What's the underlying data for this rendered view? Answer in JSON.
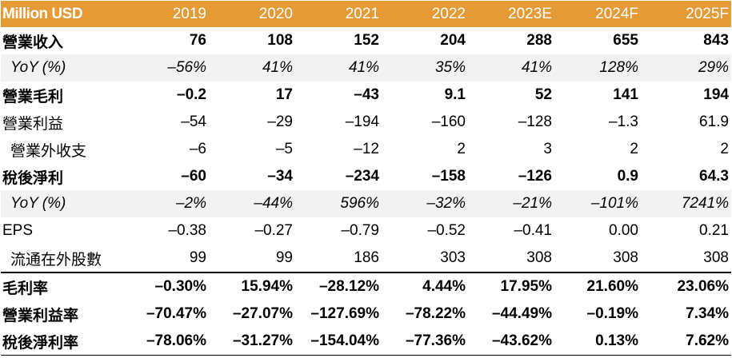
{
  "table": {
    "header": [
      "Million USD",
      "2019",
      "2020",
      "2021",
      "2022",
      "2023E",
      "2024F",
      "2025F"
    ],
    "rows": [
      {
        "label": "營業收入",
        "values": [
          "76",
          "108",
          "152",
          "204",
          "288",
          "655",
          "843"
        ]
      },
      {
        "label": "YoY (%)",
        "values": [
          "–56%",
          "41%",
          "41%",
          "35%",
          "41%",
          "128%",
          "29%"
        ]
      },
      {
        "label": "營業毛利",
        "values": [
          "–0.2",
          "17",
          "–43",
          "9.1",
          "52",
          "141",
          "194"
        ]
      },
      {
        "label": "營業利益",
        "values": [
          "–54",
          "–29",
          "–194",
          "–160",
          "–128",
          "–1.3",
          "61.9"
        ]
      },
      {
        "label": "營業外收支",
        "values": [
          "–6",
          "–5",
          "–12",
          "2",
          "3",
          "2",
          "2"
        ]
      },
      {
        "label": "稅後淨利",
        "values": [
          "–60",
          "–34",
          "–234",
          "–158",
          "–126",
          "0.9",
          "64.3"
        ]
      },
      {
        "label": "YoY (%)",
        "values": [
          "–2%",
          "–44%",
          "596%",
          "–32%",
          "–21%",
          "–101%",
          "7241%"
        ]
      },
      {
        "label": "EPS",
        "values": [
          "–0.38",
          "–0.27",
          "–0.79",
          "–0.52",
          "–0.41",
          "0.00",
          "0.21"
        ]
      },
      {
        "label": "流通在外股數",
        "values": [
          "99",
          "99",
          "186",
          "303",
          "308",
          "308",
          "308"
        ]
      },
      {
        "label": "毛利率",
        "values": [
          "–0.30%",
          "15.94%",
          "–28.12%",
          "4.44%",
          "17.95%",
          "21.60%",
          "23.06%"
        ]
      },
      {
        "label": "營業利益率",
        "values": [
          "–70.47%",
          "–27.07%",
          "–127.69%",
          "–78.22%",
          "–44.49%",
          "–0.19%",
          "7.34%"
        ]
      },
      {
        "label": "稅後淨利率",
        "values": [
          "–78.06%",
          "–31.27%",
          "–154.04%",
          "–77.36%",
          "–43.62%",
          "0.13%",
          "7.62%"
        ]
      }
    ]
  },
  "colors": {
    "header_bg": "#e69a35",
    "header_text": "#ffffff",
    "yoy_row_bg": "#f2f2f2"
  }
}
